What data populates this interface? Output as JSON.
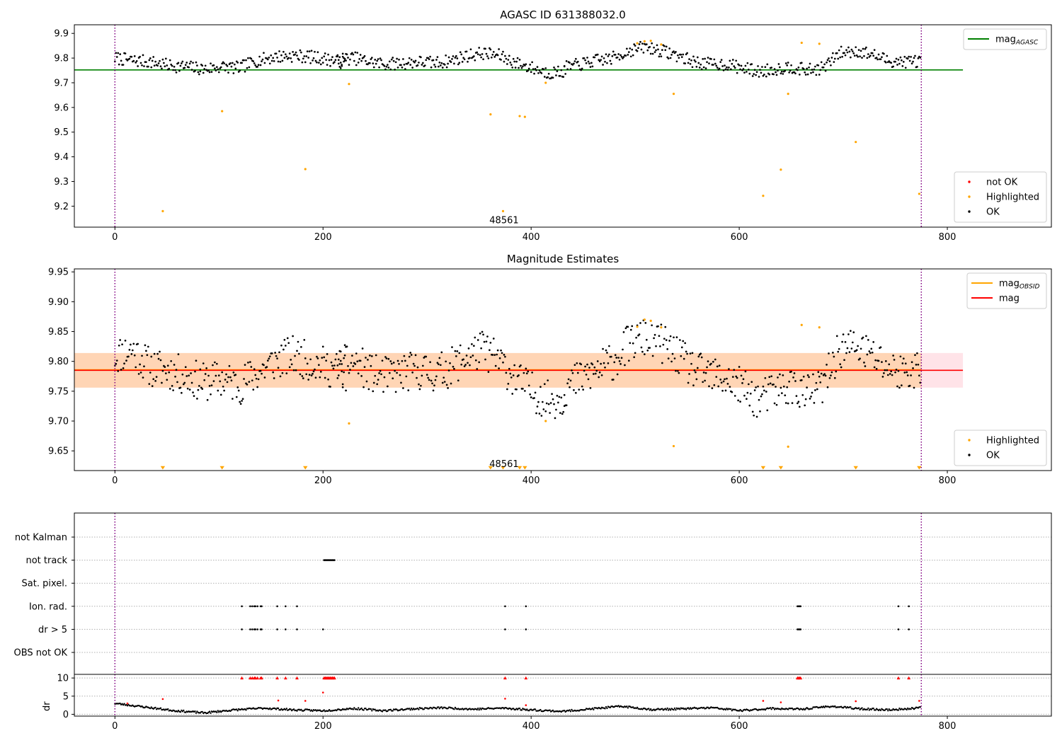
{
  "chart_data": [
    {
      "type": "scatter",
      "title": "AGASC ID 631388032.0",
      "xlim": [
        -39,
        900
      ],
      "ylim": [
        9.115,
        9.935
      ],
      "xticks": [
        0,
        200,
        400,
        600,
        800
      ],
      "yticks": [
        9.2,
        9.3,
        9.4,
        9.5,
        9.6,
        9.7,
        9.8,
        9.9
      ],
      "ytick_labels": [
        "9.2",
        "9.3",
        "9.4",
        "9.5",
        "9.6",
        "9.7",
        "9.8",
        "9.9"
      ],
      "vlines": [
        0,
        775
      ],
      "hlines": [
        {
          "name": "magAGASC",
          "y": 9.752,
          "x": [
            -39,
            815
          ],
          "color": "#008000"
        }
      ],
      "annotation": {
        "text": "48561",
        "x": 374,
        "y": 9.145
      },
      "legends": [
        {
          "position": "top-right",
          "entries": [
            {
              "kind": "line",
              "label": "mag",
              "sub": "AGASC",
              "color": "#008000"
            }
          ]
        },
        {
          "position": "lower-right",
          "entries": [
            {
              "kind": "point",
              "label": "not OK",
              "color": "#ff0000"
            },
            {
              "kind": "point",
              "label": "Highlighted",
              "color": "#ffa500"
            },
            {
              "kind": "point",
              "label": "OK",
              "color": "#000000"
            }
          ]
        }
      ],
      "series": [
        {
          "name": "Highlighted",
          "color": "#ffa500",
          "points": [
            [
              46,
              9.18
            ],
            [
              103,
              9.585
            ],
            [
              183,
              9.35
            ],
            [
              225,
              9.695
            ],
            [
              361,
              9.572
            ],
            [
              373,
              9.18
            ],
            [
              389,
              9.565
            ],
            [
              394,
              9.562
            ],
            [
              414,
              9.7
            ],
            [
              502,
              9.86
            ],
            [
              509,
              9.868
            ],
            [
              515,
              9.87
            ],
            [
              525,
              9.855
            ],
            [
              537,
              9.655
            ],
            [
              623,
              9.242
            ],
            [
              640,
              9.348
            ],
            [
              647,
              9.655
            ],
            [
              660,
              9.862
            ],
            [
              677,
              9.858
            ],
            [
              712,
              9.46
            ],
            [
              773,
              9.25
            ]
          ]
        },
        {
          "name": "OK",
          "color": "#000000",
          "segments": [
            {
              "x": [
                0,
                222
              ],
              "ys": [
                9.8,
                9.79,
                9.785,
                9.77,
                9.765,
                9.755,
                9.765,
                9.76,
                9.79,
                9.805,
                9.81,
                9.805,
                9.795,
                9.78
              ]
            },
            {
              "x": [
                214,
                432
              ],
              "ys": [
                9.795,
                9.8,
                9.785,
                9.775,
                9.78,
                9.785,
                9.78,
                9.79,
                9.81,
                9.82,
                9.81,
                9.78,
                9.76,
                9.74,
                9.745
              ]
            },
            {
              "x": [
                432,
                774
              ],
              "ys": [
                9.76,
                9.775,
                9.79,
                9.8,
                9.83,
                9.845,
                9.83,
                9.81,
                9.785,
                9.775,
                9.775,
                9.76,
                9.745,
                9.755,
                9.765,
                9.75,
                9.76,
                9.82,
                9.83,
                9.815,
                9.79,
                9.785,
                9.79
              ]
            }
          ]
        }
      ]
    },
    {
      "type": "scatter",
      "title": "Magnitude Estimates",
      "xlim": [
        -39,
        900
      ],
      "ylim": [
        9.617,
        9.955
      ],
      "xticks": [
        0,
        200,
        400,
        600,
        800
      ],
      "yticks": [
        9.65,
        9.7,
        9.75,
        9.8,
        9.85,
        9.9,
        9.95
      ],
      "ytick_labels": [
        "9.65",
        "9.70",
        "9.75",
        "9.80",
        "9.85",
        "9.90",
        "9.95"
      ],
      "vlines": [
        0,
        775
      ],
      "bands": [
        {
          "y": [
            9.756,
            9.814
          ],
          "x": [
            -39,
            815
          ],
          "color": "#ffc0cb",
          "opacity": 0.45
        },
        {
          "y": [
            9.756,
            9.814
          ],
          "x": [
            -39,
            775
          ],
          "color": "#ffa500",
          "opacity": 0.22
        }
      ],
      "hlines": [
        {
          "name": "magOBSID",
          "y": 9.786,
          "x": [
            -39,
            775
          ],
          "color": "#ffa500"
        },
        {
          "name": "mag",
          "y": 9.785,
          "x": [
            -39,
            815
          ],
          "color": "#ff0000"
        }
      ],
      "annotation": {
        "text": "48561",
        "x": 374,
        "y": 9.629
      },
      "limit_markers": {
        "color": "#ffa500",
        "y": 9.62,
        "x": [
          46,
          103,
          183,
          361,
          373,
          389,
          394,
          623,
          640,
          712,
          773
        ]
      },
      "legends": [
        {
          "position": "top-right",
          "entries": [
            {
              "kind": "line",
              "label": "mag",
              "sub": "OBSID",
              "color": "#ffa500"
            },
            {
              "kind": "line",
              "label": "mag",
              "color": "#ff0000"
            }
          ]
        },
        {
          "position": "lower-right",
          "entries": [
            {
              "kind": "point",
              "label": "Highlighted",
              "color": "#ffa500"
            },
            {
              "kind": "point",
              "label": "OK",
              "color": "#000000"
            }
          ]
        }
      ],
      "series": [
        {
          "name": "Highlighted",
          "color": "#ffa500",
          "points": [
            [
              225,
              9.696
            ],
            [
              414,
              9.7
            ],
            [
              502,
              9.858
            ],
            [
              509,
              9.87
            ],
            [
              515,
              9.868
            ],
            [
              525,
              9.857
            ],
            [
              537,
              9.658
            ],
            [
              647,
              9.657
            ],
            [
              660,
              9.861
            ],
            [
              677,
              9.857
            ]
          ]
        },
        {
          "name": "OK",
          "color": "#000000",
          "segments": [
            {
              "x": [
                0,
                222
              ],
              "ys": [
                9.81,
                9.82,
                9.79,
                9.785,
                9.775,
                9.765,
                9.77,
                9.76,
                9.78,
                9.8,
                9.81,
                9.8,
                9.79,
                9.78
              ]
            },
            {
              "x": [
                214,
                432
              ],
              "ys": [
                9.79,
                9.8,
                9.78,
                9.775,
                9.78,
                9.785,
                9.78,
                9.79,
                9.81,
                9.82,
                9.8,
                9.77,
                9.75,
                9.735,
                9.74
              ]
            },
            {
              "x": [
                432,
                774
              ],
              "ys": [
                9.755,
                9.77,
                9.785,
                9.8,
                9.83,
                9.84,
                9.83,
                9.81,
                9.785,
                9.775,
                9.77,
                9.755,
                9.735,
                9.75,
                9.76,
                9.745,
                9.76,
                9.82,
                9.825,
                9.81,
                9.79,
                9.78,
                9.79
              ]
            }
          ]
        }
      ]
    },
    {
      "type": "scatter",
      "title": "",
      "xlim": [
        -39,
        900
      ],
      "xticks": [
        0,
        200,
        400,
        600,
        800
      ],
      "vlines": [
        0,
        775
      ],
      "category_rows": [
        "not Kalman",
        "not track",
        "Sat. pixel.",
        "Ion. rad.",
        "dr > 5",
        "OBS not OK"
      ],
      "flags": [
        {
          "row": "not track",
          "x": [
            201,
            202,
            203,
            204,
            205,
            206,
            207,
            208,
            209,
            210,
            211
          ]
        },
        {
          "row": "Ion. rad.",
          "x": [
            122,
            130,
            132,
            134,
            135,
            137,
            140,
            141,
            156,
            164,
            175,
            375,
            395,
            656,
            657,
            658,
            659,
            753,
            763
          ]
        },
        {
          "row": "dr > 5",
          "x": [
            122,
            130,
            132,
            134,
            135,
            137,
            140,
            141,
            156,
            164,
            175,
            200,
            375,
            395,
            656,
            657,
            658,
            659,
            753,
            763
          ]
        }
      ],
      "dr": {
        "ylabel": "dr",
        "ylim": [
          -0.5,
          11
        ],
        "yticks": [
          0,
          5,
          10
        ],
        "ytick_labels": [
          "0",
          "5",
          "10"
        ],
        "clip_line": 10,
        "outliers": {
          "color": "#ff0000",
          "points": [
            [
              12,
              3
            ],
            [
              46,
              4.2
            ],
            [
              157,
              3.8
            ],
            [
              183,
              3.7
            ],
            [
              200,
              6
            ],
            [
              375,
              4.3
            ],
            [
              395,
              2.5
            ],
            [
              623,
              3.7
            ],
            [
              640,
              3.3
            ],
            [
              712,
              3.6
            ],
            [
              773,
              3.7
            ]
          ]
        },
        "clipped": {
          "color": "#ff0000",
          "x": [
            122,
            130,
            132,
            134,
            135,
            137,
            140,
            141,
            156,
            164,
            175,
            201,
            202,
            203,
            204,
            205,
            206,
            207,
            208,
            209,
            210,
            211,
            375,
            395,
            656,
            657,
            658,
            659,
            753,
            763
          ]
        },
        "ok": {
          "color": "#000000",
          "x": [
            0,
            774
          ],
          "ys": [
            3.0,
            2.0,
            1.0,
            0.4,
            1.2,
            1.7,
            1.2,
            1.0,
            1.6,
            1.0,
            1.5,
            1.8,
            1.4,
            1.7,
            1.2,
            0.8,
            1.5,
            2.2,
            1.3,
            1.5,
            1.8,
            1.0,
            1.6,
            1.4,
            2.2,
            1.5,
            1.2,
            1.8
          ]
        }
      }
    }
  ]
}
